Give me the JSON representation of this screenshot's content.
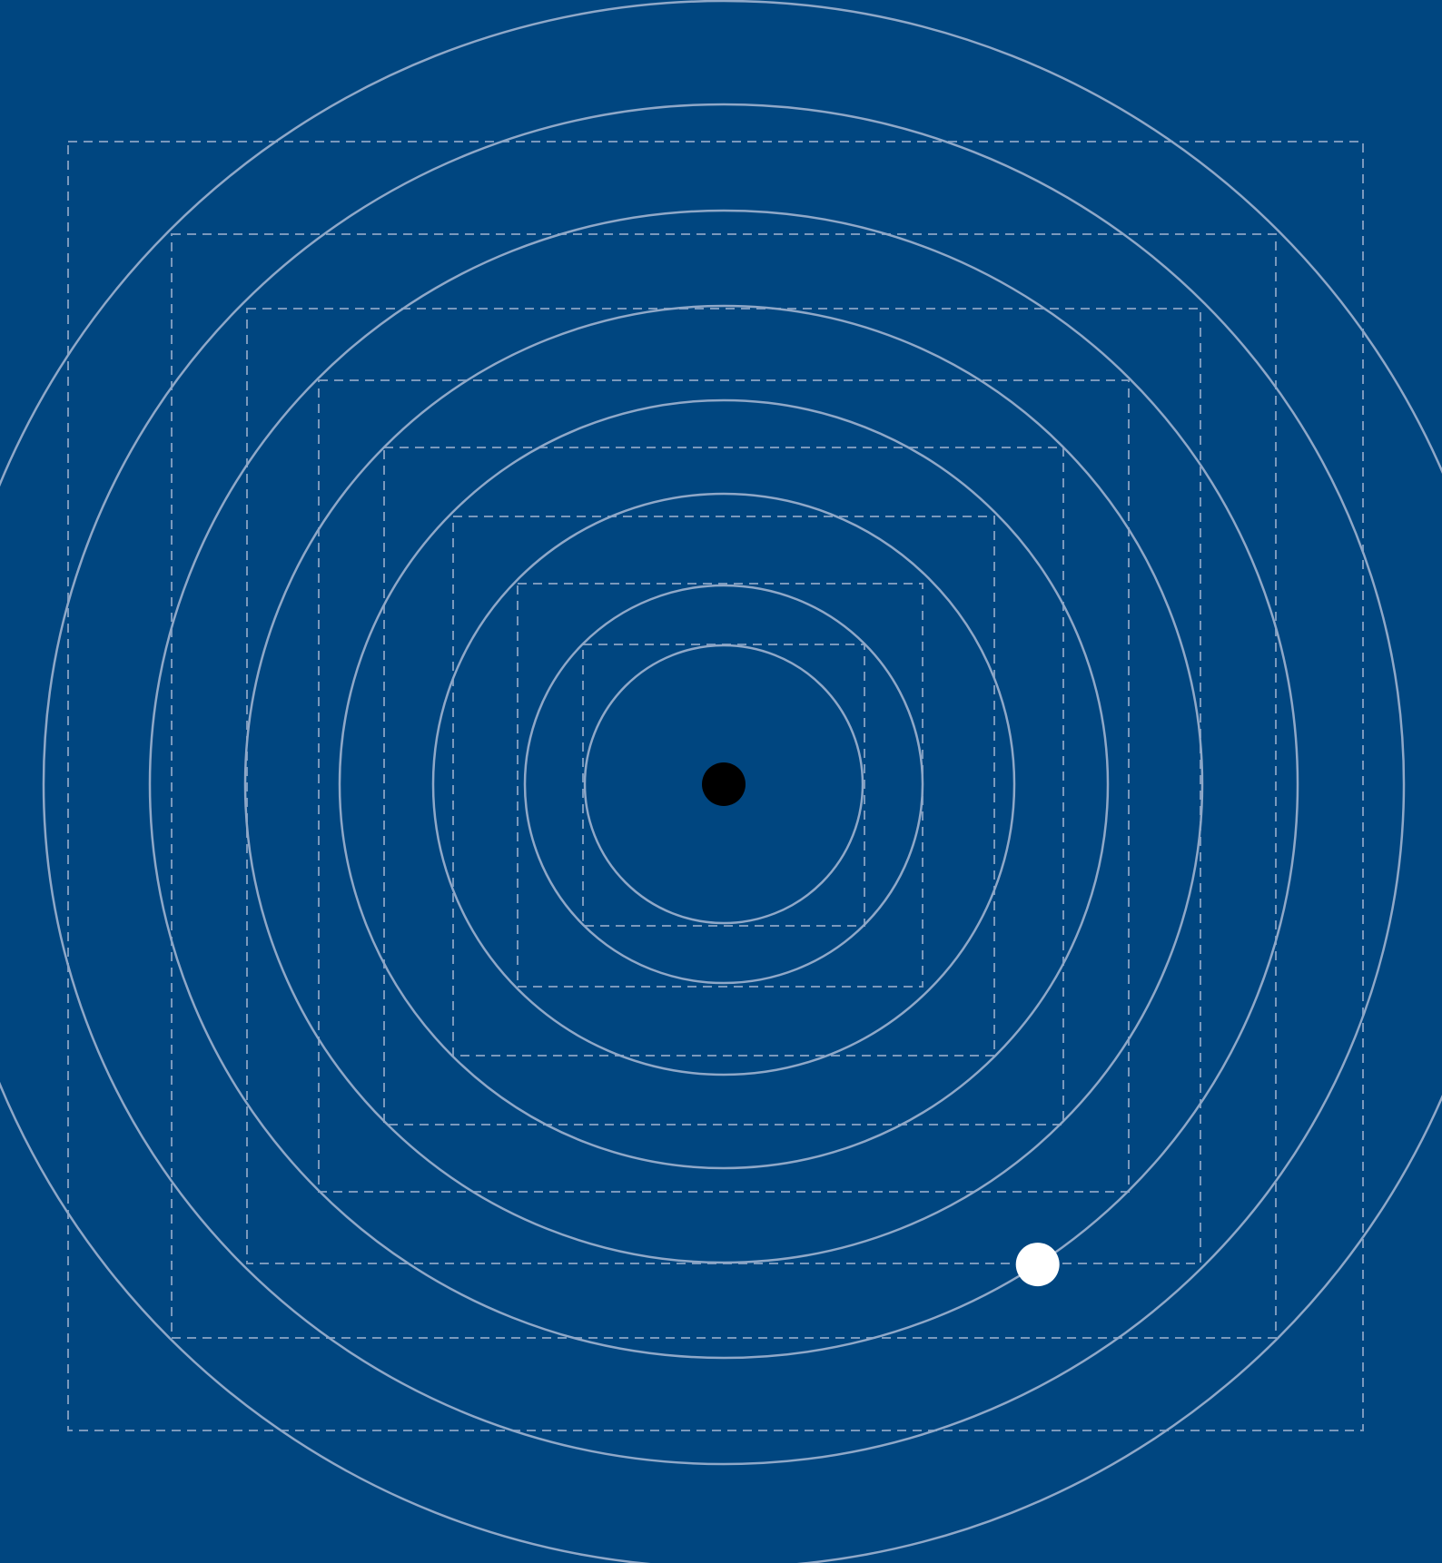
{
  "colors": {
    "background": "#004680",
    "ring_stroke": "#8FA8C8",
    "square_stroke": "#8FA8C8",
    "center_token": "#000000",
    "player_token": "#FFFFFF"
  },
  "board": {
    "ring_count": 8,
    "square_count": 8
  },
  "tokens": {
    "center": {
      "color": "black",
      "role": "center-target"
    },
    "player": {
      "color": "white",
      "ring_index": 5
    }
  }
}
